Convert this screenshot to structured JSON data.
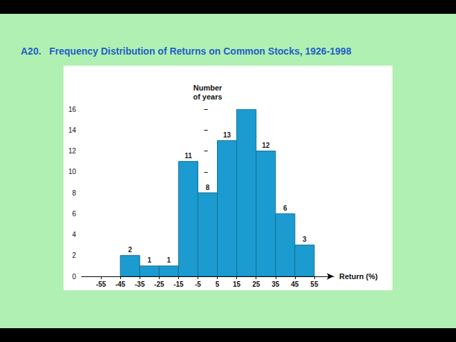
{
  "chart_data": {
    "type": "histogram",
    "title": "A20.   Frequency Distribution of Returns on Common Stocks, 1926-1998",
    "bins": [
      -45,
      -35,
      -25,
      -15,
      -5,
      5,
      15,
      25,
      35,
      45,
      55
    ],
    "values": [
      2,
      1,
      1,
      11,
      8,
      13,
      16,
      12,
      6,
      3
    ],
    "color": "#1b9bd0",
    "xlabel": "Return (%)",
    "ylabel": "Number\nof years",
    "xlim": [
      -65,
      65
    ],
    "xticks": [
      -55,
      -45,
      -35,
      -25,
      -15,
      -5,
      5,
      15,
      25,
      35,
      45,
      55
    ],
    "ylim": [
      0,
      16
    ],
    "yticks": [
      0,
      2,
      4,
      6,
      8,
      10,
      12,
      14,
      16
    ],
    "grid": false,
    "data_labels": true
  }
}
